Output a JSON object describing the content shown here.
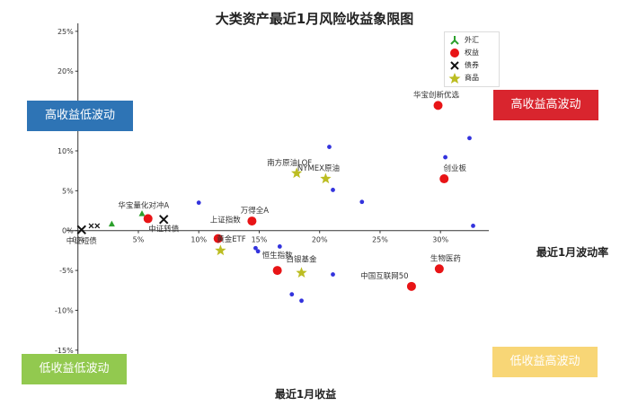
{
  "chart_data": {
    "type": "scatter",
    "title": "大类资产最近1月风险收益象限图",
    "xlabel": "最近1月波动率",
    "ylabel": "最近1月收益",
    "xlim": [
      -0.5,
      34
    ],
    "ylim": [
      -17.5,
      26
    ],
    "x_ticks": [
      "0%",
      "5%",
      "10%",
      "15%",
      "20%",
      "25%",
      "30%"
    ],
    "y_ticks": [
      "25%",
      "20%",
      "15%",
      "10%",
      "5%",
      "0%",
      "-5%",
      "-10%",
      "-15%"
    ],
    "legend": {
      "placement": "top-right",
      "entries": [
        "外汇",
        "权益",
        "债券",
        "商品"
      ]
    },
    "quadrant_labels": {
      "top_left": "高收益低波动",
      "top_right": "高收益高波动",
      "bottom_left": "低收益低波动",
      "bottom_right": "低收益高波动"
    },
    "series": [
      {
        "name": "外汇",
        "marker": "tri_up",
        "color": "#2ca02c",
        "points": [
          {
            "x": 2.8,
            "y": 0.8,
            "label": ""
          },
          {
            "x": 5.3,
            "y": 2.1,
            "label": ""
          }
        ]
      },
      {
        "name": "权益",
        "marker": "circle",
        "color": "#e81416",
        "points": [
          {
            "x": 29.8,
            "y": 15.7,
            "label": "华宝创新优选"
          },
          {
            "x": 30.3,
            "y": 6.5,
            "label": "创业板"
          },
          {
            "x": 5.8,
            "y": 1.5,
            "label": "华宝量化对冲A"
          },
          {
            "x": 14.4,
            "y": 1.2,
            "label": "万得全A"
          },
          {
            "x": 11.6,
            "y": -1.0,
            "label": "上证指数"
          },
          {
            "x": 16.5,
            "y": -5.0,
            "label": "恒生指数"
          },
          {
            "x": 29.9,
            "y": -4.8,
            "label": "生物医药"
          },
          {
            "x": 27.6,
            "y": -7.0,
            "label": "中国互联网50"
          }
        ]
      },
      {
        "name": "债券",
        "marker": "x",
        "color": "#111111",
        "points": [
          {
            "x": 0.3,
            "y": 0.1,
            "label": "中证短债"
          },
          {
            "x": 7.1,
            "y": 1.4,
            "label": "中证转债"
          },
          {
            "x": 1.1,
            "y": 0.6,
            "label": ""
          },
          {
            "x": 1.6,
            "y": 0.6,
            "label": ""
          }
        ]
      },
      {
        "name": "商品",
        "marker": "star",
        "color": "#bcbd22",
        "points": [
          {
            "x": 18.1,
            "y": 7.2,
            "label": "南方原油LOF"
          },
          {
            "x": 20.5,
            "y": 6.5,
            "label": "NYMEX原油"
          },
          {
            "x": 11.8,
            "y": -2.5,
            "label": "黄金ETF"
          },
          {
            "x": 18.5,
            "y": -5.3,
            "label": "白银基金"
          }
        ]
      }
    ],
    "other_points": [
      {
        "x": 10.0,
        "y": 3.5
      },
      {
        "x": 20.8,
        "y": 10.5
      },
      {
        "x": 21.1,
        "y": 5.1
      },
      {
        "x": 23.5,
        "y": 3.6
      },
      {
        "x": 30.4,
        "y": 9.2
      },
      {
        "x": 32.4,
        "y": 11.6
      },
      {
        "x": 32.7,
        "y": 0.6
      },
      {
        "x": 14.7,
        "y": -2.2
      },
      {
        "x": 14.9,
        "y": -2.6
      },
      {
        "x": 16.7,
        "y": -2.0
      },
      {
        "x": 21.1,
        "y": -5.5
      },
      {
        "x": 17.7,
        "y": -8.0
      },
      {
        "x": 18.5,
        "y": -8.8
      }
    ],
    "other_color": "#3333dd",
    "grid": false
  }
}
